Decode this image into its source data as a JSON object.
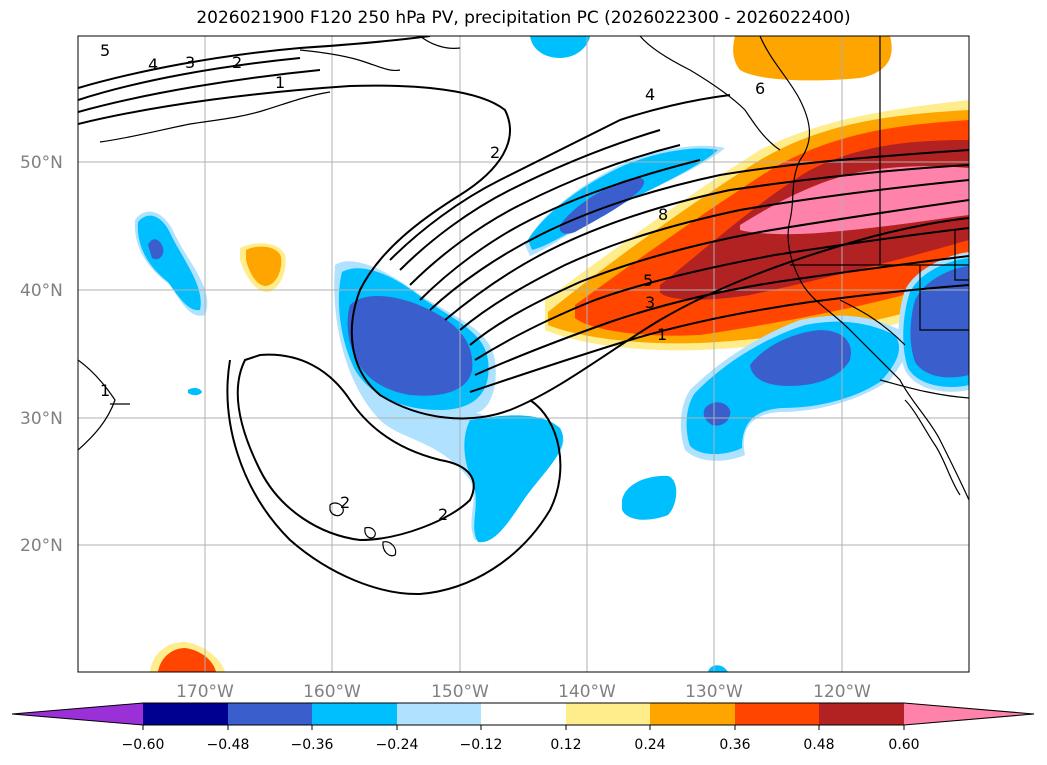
{
  "title": "2026021900 F120 250 hPa PV, precipitation PC (2026022300 - 2026022400)",
  "map": {
    "lat_labels": [
      "50°N",
      "40°N",
      "30°N",
      "20°N"
    ],
    "lon_labels": [
      "170°W",
      "160°W",
      "150°W",
      "140°W",
      "130°W",
      "120°W"
    ],
    "contour_labels": [
      "5",
      "4",
      "3",
      "2",
      "1",
      "2",
      "4",
      "6",
      "8",
      "5",
      "3",
      "1",
      "1",
      "2",
      "2"
    ]
  },
  "colorbar": {
    "ticks": [
      "−0.60",
      "−0.48",
      "−0.36",
      "−0.24",
      "−0.12",
      "0.12",
      "0.24",
      "0.36",
      "0.48",
      "0.60"
    ],
    "colors": {
      "under": "#9b30d9",
      "b1": "#000090",
      "b2": "#3a5fcd",
      "b3": "#00bfff",
      "b4": "#b0e2ff",
      "b5": "#ffffff",
      "b6": "#ffec8b",
      "b7": "#ffa500",
      "b8": "#ff4500",
      "b9": "#b22222",
      "over": "#ff82ab"
    }
  }
}
